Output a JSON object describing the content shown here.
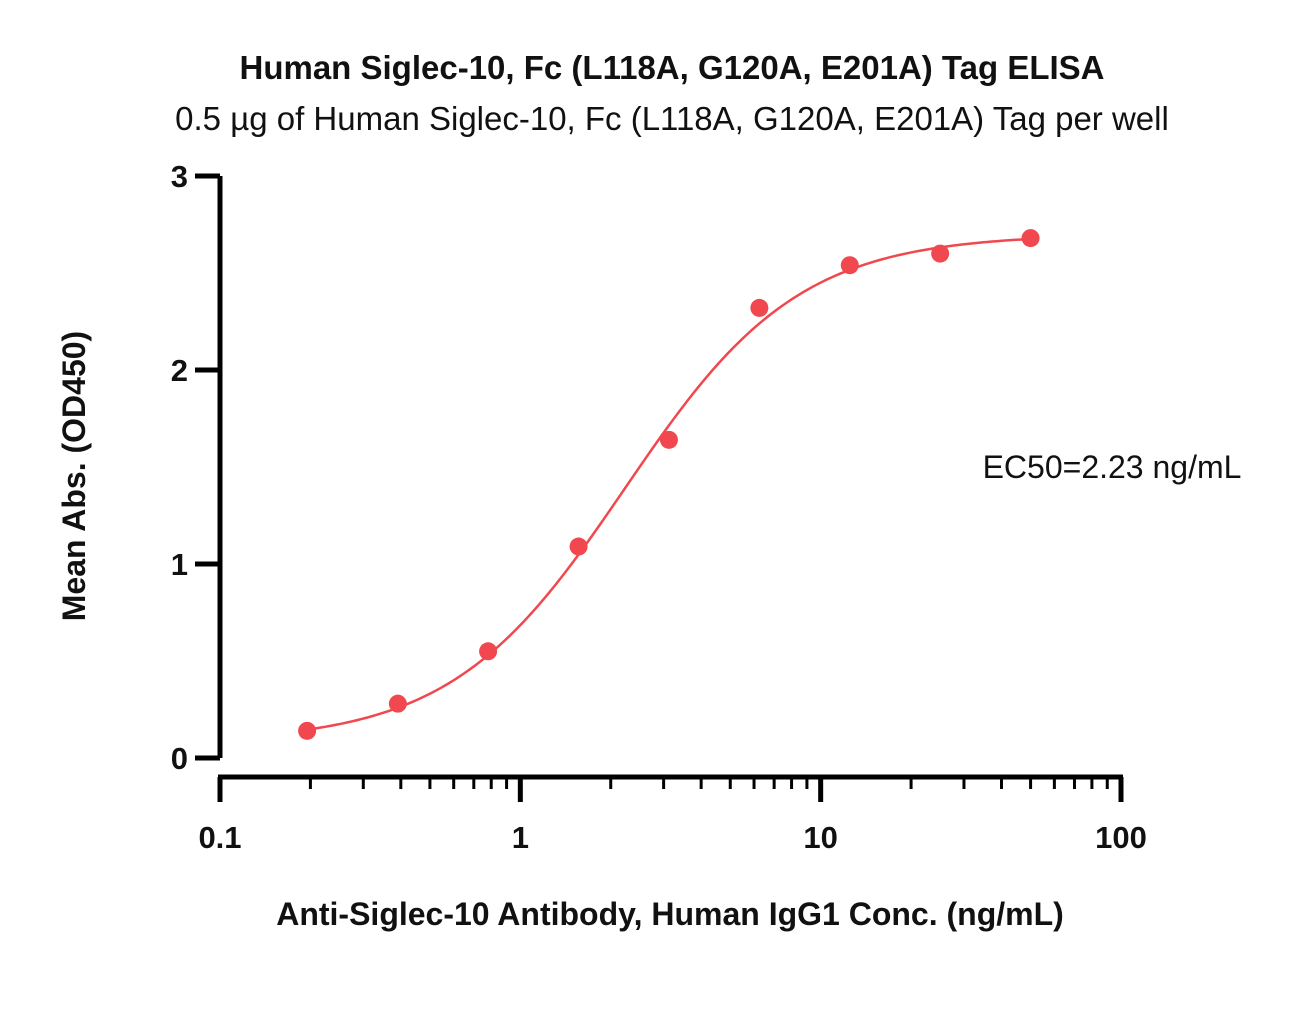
{
  "chart_data": {
    "type": "scatter",
    "title": "Human Siglec-10, Fc (L118A, G120A, E201A) Tag ELISA",
    "subtitle": "0.5 µg of Human Siglec-10, Fc (L118A, G120A, E201A) Tag per well",
    "xlabel": "Anti-Siglec-10 Antibody, Human IgG1 Conc. (ng/mL)",
    "ylabel": "Mean Abs. (OD450)",
    "xscale": "log",
    "xlim": [
      0.1,
      100
    ],
    "ylim": [
      0,
      3
    ],
    "xticks": [
      0.1,
      1,
      10,
      100
    ],
    "xtick_labels": [
      "0.1",
      "1",
      "10",
      "100"
    ],
    "yticks": [
      0,
      1,
      2,
      3
    ],
    "ytick_labels": [
      "0",
      "1",
      "2",
      "3"
    ],
    "grid": false,
    "legend": "none",
    "annotation": "EC50=2.23 ng/mL",
    "color": "#f0484e",
    "series": [
      {
        "x": [
          0.195,
          0.391,
          0.781,
          1.563,
          3.125,
          6.25,
          12.5,
          25,
          50
        ],
        "y": [
          0.14,
          0.28,
          0.55,
          1.09,
          1.64,
          2.32,
          2.54,
          2.6,
          2.68
        ]
      }
    ],
    "fit": {
      "model": "4PL",
      "bottom": 0.08,
      "top": 2.7,
      "ec50": 2.23,
      "hill": 1.5
    }
  }
}
